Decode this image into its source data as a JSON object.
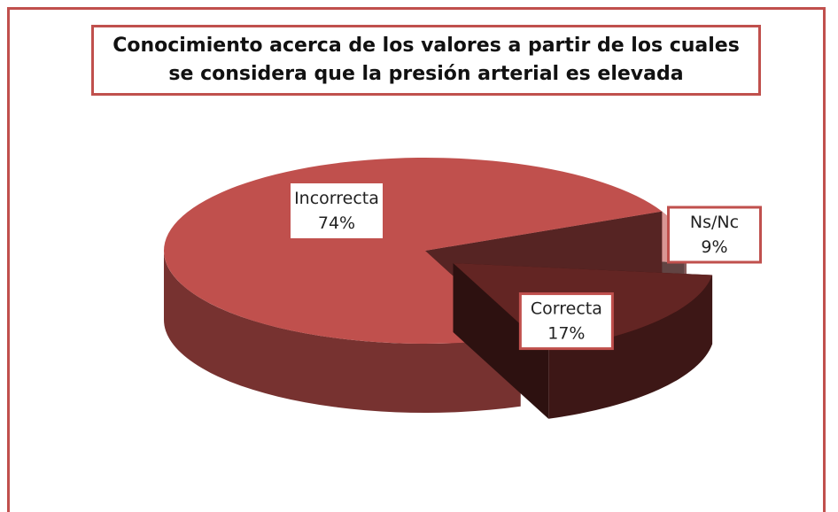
{
  "chart_data": {
    "type": "pie3d",
    "title": "Conocimiento acerca de los valores a partir de los cuales se considera que la presión arterial es elevada",
    "categories": [
      "Ns/Nc",
      "Correcta",
      "Incorrecta"
    ],
    "values": [
      9,
      17,
      74
    ],
    "value_labels": [
      "9%",
      "17%",
      "74%"
    ],
    "colors": [
      "#d99694",
      "#632523",
      "#c0504d"
    ],
    "exploded": [
      false,
      true,
      false
    ]
  }
}
